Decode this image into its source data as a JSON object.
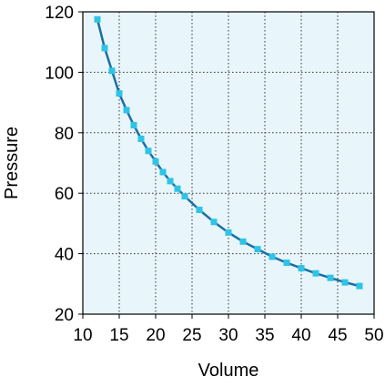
{
  "chart_data": {
    "type": "line",
    "title": "",
    "xlabel": "Volume",
    "ylabel": "Pressure",
    "xlim": [
      10,
      50
    ],
    "ylim": [
      20,
      120
    ],
    "xticks": [
      10,
      15,
      20,
      25,
      30,
      35,
      40,
      45,
      50
    ],
    "yticks": [
      20,
      40,
      60,
      80,
      100,
      120
    ],
    "grid": true,
    "legend": "none",
    "colors": {
      "plot_background": "#e8f5fa",
      "line": "#1a6fa3",
      "marker": "#2ec4e6",
      "grid": "#333333",
      "frame": "#000000"
    },
    "series": [
      {
        "x": [
          12,
          13,
          14,
          15,
          16,
          17,
          18,
          19,
          20,
          21,
          22,
          23,
          24,
          26,
          28,
          30,
          32,
          34,
          36,
          38,
          40,
          42,
          44,
          46,
          48
        ],
        "y": [
          117.5,
          108,
          100.5,
          93,
          87.5,
          82.5,
          78,
          74,
          70.5,
          67,
          64,
          61.5,
          59,
          54.5,
          50.5,
          47,
          44,
          41.5,
          39,
          37,
          35.2,
          33.5,
          32,
          30.5,
          29.3
        ]
      }
    ]
  }
}
